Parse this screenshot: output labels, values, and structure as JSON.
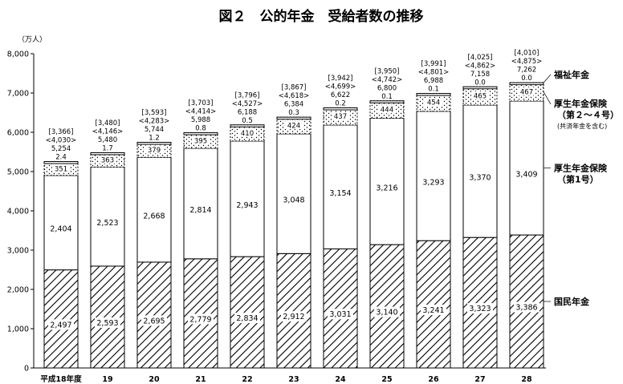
{
  "chart_data": {
    "type": "bar",
    "stacked": true,
    "title": "図２　公的年金　受給者数の推移",
    "unit": "（万人）",
    "ylim": [
      0,
      8000
    ],
    "yticks": [
      "0",
      "1,000",
      "2,000",
      "3,000",
      "4,000",
      "5,000",
      "6,000",
      "7,000",
      "8,000"
    ],
    "categories": [
      "平成18年度",
      "19",
      "20",
      "21",
      "22",
      "23",
      "24",
      "25",
      "26",
      "27",
      "28"
    ],
    "totals": [
      5254,
      5480,
      5744,
      5988,
      6188,
      6384,
      6622,
      6800,
      6988,
      7158,
      7262
    ],
    "totals_text": [
      "5,254",
      "5,480",
      "5,744",
      "5,988",
      "6,188",
      "6,384",
      "6,622",
      "6,800",
      "6,988",
      "7,158",
      "7,262"
    ],
    "bracket_values": [
      "[3,366]",
      "[3,480]",
      "[3,593]",
      "[3,703]",
      "[3,796]",
      "[3,867]",
      "[3,942]",
      "[3,950]",
      "[3,991]",
      "[4,025]",
      "[4,010]"
    ],
    "angle_values": [
      "<4,030>",
      "<4,146>",
      "<4,283>",
      "<4,414>",
      "<4,527>",
      "<4,618>",
      "<4,699>",
      "<4,742>",
      "<4,801>",
      "<4,862>",
      "<4,875>"
    ],
    "series": [
      {
        "name": "国民年金",
        "pattern": "hatch",
        "values": [
          2497,
          2593,
          2695,
          2779,
          2834,
          2912,
          3031,
          3140,
          3241,
          3323,
          3386
        ],
        "labels": [
          "2,497",
          "2,593",
          "2,695",
          "2,779",
          "2,834",
          "2,912",
          "3,031",
          "3,140",
          "3,241",
          "3,323",
          "3,386"
        ]
      },
      {
        "name": "厚生年金保険（第1号）",
        "pattern": "white",
        "values": [
          2404,
          2523,
          2668,
          2814,
          2943,
          3048,
          3154,
          3216,
          3293,
          3370,
          3409
        ],
        "labels": [
          "2,404",
          "2,523",
          "2,668",
          "2,814",
          "2,943",
          "3,048",
          "3,154",
          "3,216",
          "3,293",
          "3,370",
          "3,409"
        ]
      },
      {
        "name": "厚生年金保険（第２～４号）",
        "pattern": "dots",
        "values": [
          351,
          363,
          379,
          395,
          410,
          424,
          437,
          444,
          454,
          465,
          467
        ],
        "labels": [
          "351",
          "363",
          "379",
          "395",
          "410",
          "424",
          "437",
          "444",
          "454",
          "465",
          "467"
        ]
      },
      {
        "name": "福祉年金",
        "pattern": "white",
        "values": [
          2.4,
          1.7,
          1.2,
          0.8,
          0.5,
          0.3,
          0.2,
          0.1,
          0.1,
          0.0,
          0.0
        ],
        "labels": [
          "2.4",
          "1.7",
          "1.2",
          "0.8",
          "0.5",
          "0.3",
          "0.2",
          "0.1",
          "0.1",
          "0.0",
          "0.0"
        ]
      }
    ],
    "legend_labels": {
      "fukushi": "福祉年金",
      "kosei_234_line1": "厚生年金保険",
      "kosei_234_line2": "（第２～４号）",
      "kosei_234_note": "(共済年金を含む)",
      "kosei_1_line1": "厚生年金保険",
      "kosei_1_line2": "（第1号）",
      "kokumin": "国民年金"
    }
  }
}
